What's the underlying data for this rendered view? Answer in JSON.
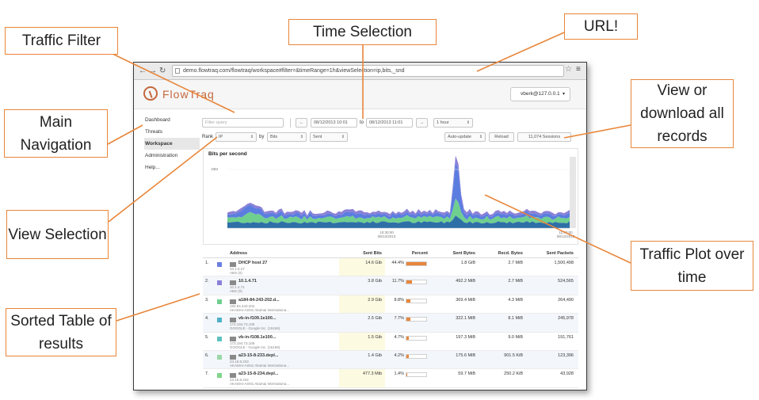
{
  "callouts": {
    "traffic_filter": "Traffic Filter",
    "time_selection": "Time Selection",
    "url": "URL!",
    "main_navigation": "Main Navigation",
    "view_download": "View or download all records",
    "view_selection": "View Selection",
    "traffic_plot": "Traffic Plot over time",
    "sorted_table": "Sorted Table of results"
  },
  "browser": {
    "url": "demo.flowtraq.com/flowtraq/workspace#filter=&timeRange=1h&viewSelection=ip,bits,_snd",
    "back_icon": "back-arrow-icon",
    "forward_icon": "forward-arrow-icon",
    "reload_icon": "reload-icon"
  },
  "app": {
    "logo_text": "FlowTraq",
    "user": "vberk@127.0.0.1"
  },
  "nav": {
    "items": [
      "Dashboard",
      "Threats",
      "Workspace",
      "Administration",
      "Help..."
    ],
    "active": "Workspace"
  },
  "controls": {
    "filter_placeholder": "Filter query",
    "prev": "←",
    "from": "08/12/2013 10:01",
    "to_label": "to",
    "to": "08/12/2013 11:01",
    "next": "→",
    "range": "1 hour",
    "rank_label": "Rank",
    "rank_by": "IP",
    "by_label": "by",
    "metric": "Bits",
    "direction": "Sent",
    "auto_update": "Auto-update",
    "reload": "Reload",
    "sessions": "11,074 Sessions"
  },
  "chart_data": {
    "type": "area",
    "title": "Bits per second",
    "y_tick": "33M",
    "x_ticks": [
      {
        "label": "10:30:00",
        "sub": "08/12/2013"
      },
      {
        "label": "11:00:00",
        "sub": "08/12/2013"
      }
    ],
    "peak_position": 0.67,
    "colors": [
      "#5b7de0",
      "#8b7fd6",
      "#6fcf8f",
      "#4cb1c7",
      "#2f6fa8"
    ]
  },
  "table": {
    "headers": [
      "Address",
      "Sent Bits",
      "Percent",
      "Sent Bytes",
      "Recd. Bytes",
      "Sent Packets"
    ],
    "rows": [
      {
        "rank": "1.",
        "color": "#6b7fe0",
        "address": "DHCP host 27",
        "ip": "10.1.6.27",
        "org": "ABS (0)",
        "sent_bits": "14.6 Gib",
        "percent": "44.4%",
        "pct": 44.4,
        "sent_bytes": "1.8 GiB",
        "recd_bytes": "2.7 MiB",
        "sent_packets": "1,500,498"
      },
      {
        "rank": "2.",
        "color": "#8c7fd8",
        "address": "10.1.4.71",
        "ip": "10.1.4.71",
        "org": "ABS (0)",
        "sent_bits": "3.8 Gib",
        "percent": "11.7%",
        "pct": 11.7,
        "sent_bytes": "492.2 MiB",
        "recd_bytes": "2.7 MiB",
        "sent_packets": "524,565"
      },
      {
        "rank": "3.",
        "color": "#6fcf8f",
        "address": "a184-84-243-202.d...",
        "ip": "184.84.243.202",
        "org": "AKAMAI-ASN1 Akamai Internationa...",
        "sent_bits": "2.9 Gib",
        "percent": "8.8%",
        "pct": 8.8,
        "sent_bytes": "369.4 MiB",
        "recd_bytes": "4.3 MiB",
        "sent_packets": "264,490"
      },
      {
        "rank": "4.",
        "color": "#4cb1c7",
        "address": "vb-in-f109.1e100...",
        "ip": "173.194.73.109",
        "org": "GOOGLE - Google Inc. (15169)",
        "sent_bits": "2.5 Gib",
        "percent": "7.7%",
        "pct": 7.7,
        "sent_bytes": "322.1 MiB",
        "recd_bytes": "8.1 MiB",
        "sent_packets": "245,978"
      },
      {
        "rank": "5.",
        "color": "#5dc2c0",
        "address": "vb-in-f108.1e100...",
        "ip": "173.194.73.108",
        "org": "GOOGLE - Google Inc. (15169)",
        "sent_bits": "1.5 Gib",
        "percent": "4.7%",
        "pct": 4.7,
        "sent_bytes": "197.3 MiB",
        "recd_bytes": "9.0 MiB",
        "sent_packets": "191,761"
      },
      {
        "rank": "6.",
        "color": "#9bd7a8",
        "address": "a23-15-8-233.depl...",
        "ip": "23.15.8.233",
        "org": "AKAMAI-ASN1 Akamai Internationa...",
        "sent_bits": "1.4 Gib",
        "percent": "4.2%",
        "pct": 4.2,
        "sent_bytes": "175.6 MiB",
        "recd_bytes": "901.5 KiB",
        "sent_packets": "123,396"
      },
      {
        "rank": "7.",
        "color": "#7fd68a",
        "address": "a23-15-8-234.depl...",
        "ip": "23.15.8.234",
        "org": "AKAMAI-ASN1 Akamai Internationa...",
        "sent_bits": "477.3 Mib",
        "percent": "1.4%",
        "pct": 1.4,
        "sent_bytes": "59.7 MiB",
        "recd_bytes": "250.2 KiB",
        "sent_packets": "43,928"
      }
    ]
  }
}
